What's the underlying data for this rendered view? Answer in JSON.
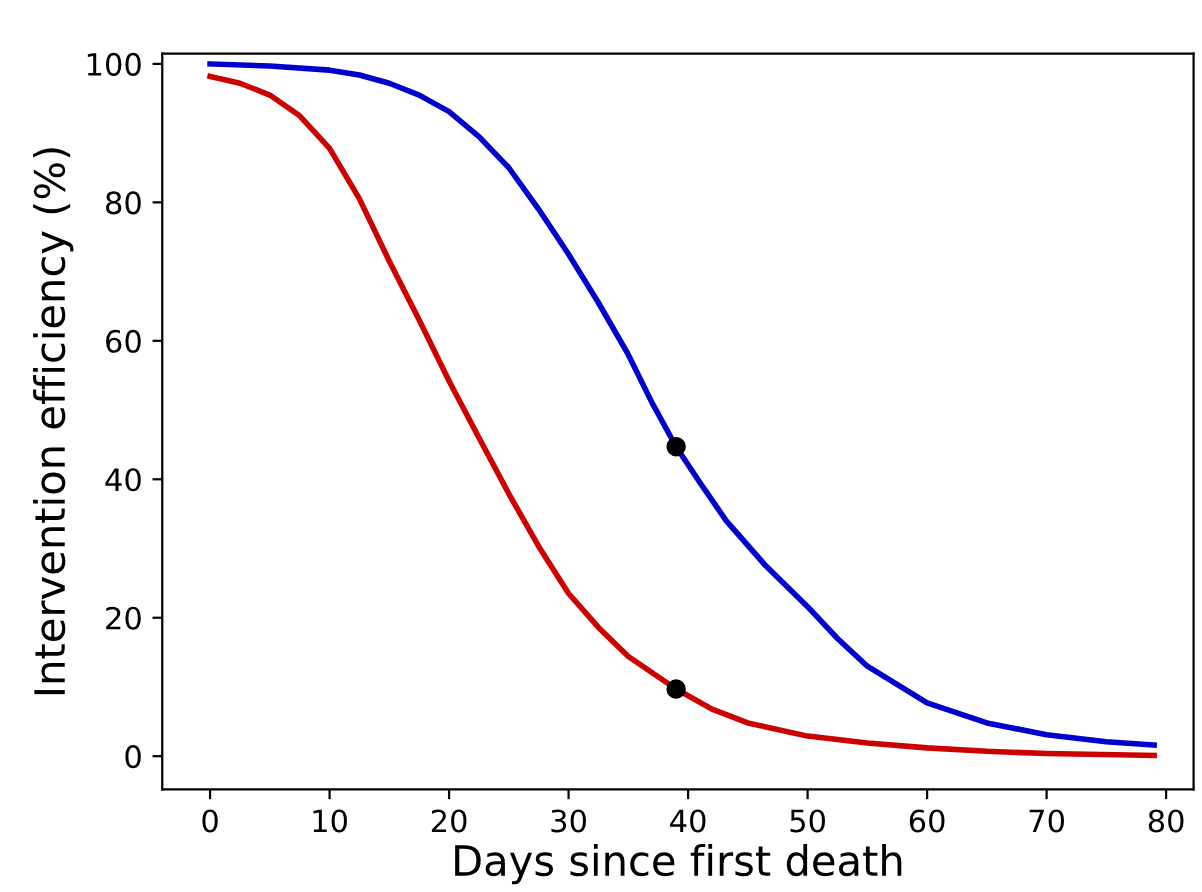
{
  "chart_data": {
    "type": "line",
    "xlabel": "Days since first death",
    "ylabel": "Intervention efficiency (%)",
    "xlim": [
      -4,
      82.3
    ],
    "ylim": [
      -4.8,
      101.5
    ],
    "xticks": [
      0,
      10,
      20,
      30,
      40,
      50,
      60,
      70,
      80
    ],
    "yticks": [
      0,
      20,
      40,
      60,
      80,
      100
    ],
    "grid": false,
    "legend": false,
    "line_style": "solid",
    "marker": "none",
    "series": [
      {
        "color": "#0000cc",
        "x": [
          0,
          5,
          10,
          12.5,
          15,
          17.5,
          20,
          22.5,
          25,
          27.5,
          30,
          32.5,
          35,
          37,
          39,
          41,
          43.2,
          46.5,
          50,
          52.5,
          55,
          60,
          65,
          70,
          75,
          79
        ],
        "values": [
          100,
          99.7,
          99.1,
          98.4,
          97.2,
          95.5,
          93.1,
          89.5,
          85,
          79,
          72.5,
          65.5,
          58,
          51,
          44.7,
          39.5,
          34,
          27.5,
          21.6,
          17,
          13,
          7.7,
          4.8,
          3.1,
          2.1,
          1.6
        ]
      },
      {
        "color": "#cc0000",
        "x": [
          0,
          2.5,
          5,
          7.5,
          10,
          12.5,
          15,
          17.5,
          20,
          22.5,
          25,
          27.5,
          30,
          32.5,
          35,
          39,
          42,
          45,
          50,
          55,
          60,
          65,
          70,
          79
        ],
        "values": [
          98.2,
          97.2,
          95.5,
          92.5,
          87.8,
          80.5,
          71.5,
          63,
          54.2,
          46,
          37.9,
          30.3,
          23.5,
          18.6,
          14.4,
          9.7,
          6.8,
          4.8,
          2.9,
          1.9,
          1.2,
          0.7,
          0.4,
          0.1
        ]
      },
      {
        "type": "scatter",
        "color": "#000000",
        "marker": "circle",
        "x": [
          39,
          39
        ],
        "values": [
          44.7,
          9.7
        ]
      }
    ]
  }
}
